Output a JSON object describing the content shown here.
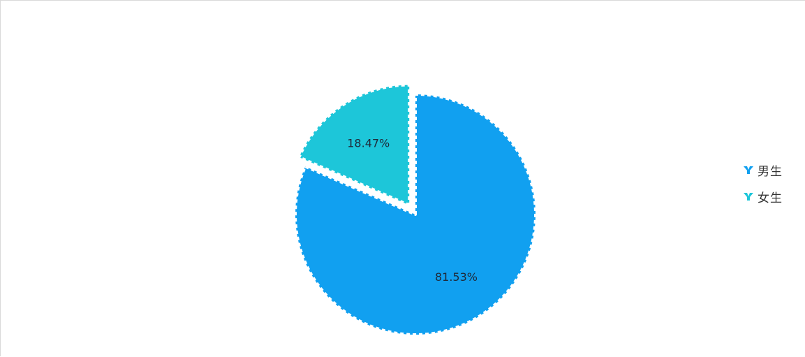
{
  "chart_data": {
    "type": "pie",
    "categories": [
      "男生",
      "女生"
    ],
    "values": [
      81.53,
      18.47
    ],
    "labels": [
      "81.53%",
      "18.47%"
    ],
    "colors": [
      "#11a0f0",
      "#1dc6d9"
    ],
    "legend_placement": "right",
    "exploded": [
      false,
      true
    ]
  },
  "legend": {
    "items": [
      {
        "label": "男生",
        "color": "#11a0f0",
        "icon": "legend-marker-icon"
      },
      {
        "label": "女生",
        "color": "#1dc6d9",
        "icon": "legend-marker-icon"
      }
    ]
  }
}
